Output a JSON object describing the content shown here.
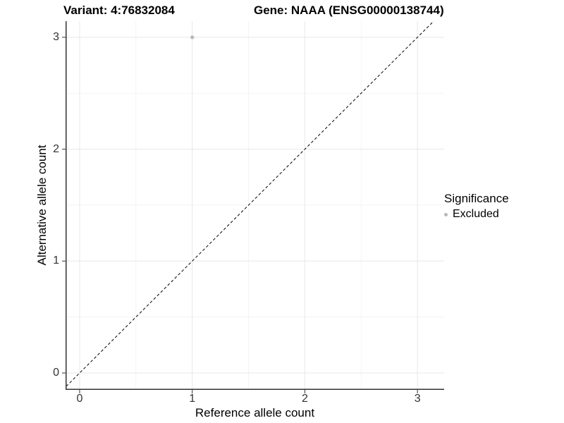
{
  "chart_data": {
    "type": "scatter",
    "title_left": "Variant: 4:76832084",
    "title_right": "Gene: NAAA (ENSG00000138744)",
    "xlabel": "Reference allele count",
    "ylabel": "Alternative allele count",
    "x_ticks": [
      0,
      1,
      2,
      3
    ],
    "y_ticks": [
      0,
      1,
      2,
      3
    ],
    "x_minor_ticks": [
      0.5,
      1.5,
      2.5
    ],
    "y_minor_ticks": [
      0.5,
      1.5,
      2.5
    ],
    "xlim": [
      -0.125,
      3.237
    ],
    "ylim": [
      -0.151,
      3.144
    ],
    "grid": true,
    "legend_position": "right",
    "series": [
      {
        "name": "Excluded",
        "color": "#b8b8b8",
        "points": [
          {
            "x": 1,
            "y": 3
          }
        ]
      }
    ],
    "reference_line": {
      "slope": 1,
      "intercept": 0,
      "style": "dashed",
      "color": "#000000"
    },
    "legend": {
      "title": "Significance",
      "entries": [
        {
          "label": "Excluded",
          "color": "#b8b8b8"
        }
      ]
    },
    "colors": {
      "background": "#ffffff",
      "grid_major": "#e8e8e8",
      "grid_minor": "#f2f2f2",
      "axis_line": "#333333",
      "tick_label": "#333333",
      "point": "#b8b8b8"
    }
  }
}
